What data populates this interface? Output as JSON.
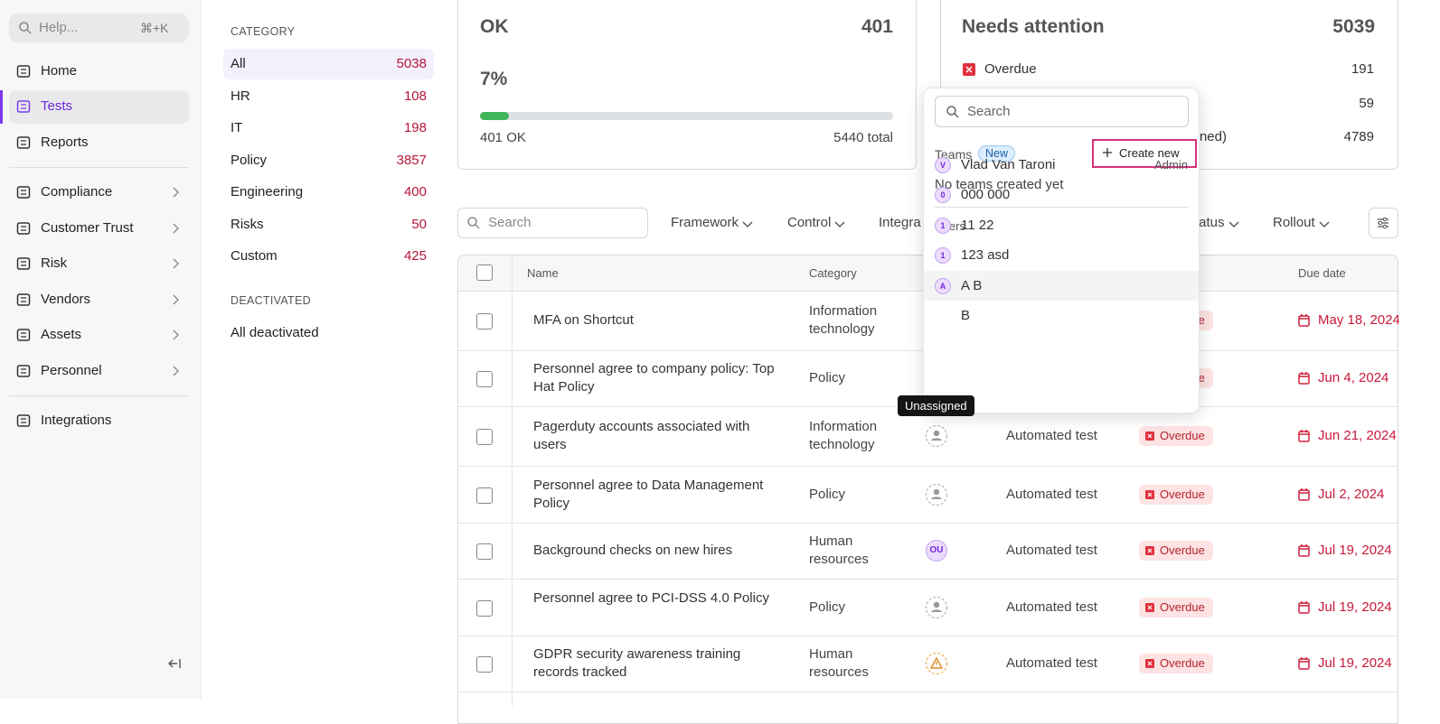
{
  "sidebar": {
    "search": {
      "placeholder": "Help...",
      "shortcut": "⌘+K"
    },
    "nav": [
      {
        "label": "Home"
      },
      {
        "label": "Tests",
        "active": true
      },
      {
        "label": "Reports"
      },
      {
        "label": "Compliance",
        "expandable": true
      },
      {
        "label": "Customer Trust",
        "expandable": true
      },
      {
        "label": "Risk",
        "expandable": true
      },
      {
        "label": "Vendors",
        "expandable": true
      },
      {
        "label": "Assets",
        "expandable": true
      },
      {
        "label": "Personnel",
        "expandable": true
      },
      {
        "label": "Integrations"
      }
    ]
  },
  "categories": {
    "heading": "CATEGORY",
    "items": [
      {
        "label": "All",
        "count": 5038,
        "active": true
      },
      {
        "label": "HR",
        "count": 108
      },
      {
        "label": "IT",
        "count": 198
      },
      {
        "label": "Policy",
        "count": 3857
      },
      {
        "label": "Engineering",
        "count": 400
      },
      {
        "label": "Risks",
        "count": 50
      },
      {
        "label": "Custom",
        "count": 425
      }
    ],
    "deactivated_heading": "DEACTIVATED",
    "deactivated_item": "All deactivated"
  },
  "ok_card": {
    "title": "OK",
    "count": 401,
    "percent_label": "7%",
    "progress": 7,
    "ok_label": "401 OK",
    "total_label": "5440 total"
  },
  "attention_card": {
    "title": "Needs attention",
    "count": 5039,
    "rows": [
      {
        "label": "Overdue",
        "count": 191,
        "icon": "overdue"
      },
      {
        "count": 59
      },
      {
        "label": "ned)",
        "count": 4789
      }
    ]
  },
  "filters": {
    "search_placeholder": "Search",
    "items": [
      "Framework",
      "Control",
      "Integra",
      "tatus",
      "Rollout"
    ]
  },
  "table": {
    "columns": [
      "Name",
      "Category",
      "Due date"
    ],
    "rows": [
      {
        "name": "MFA on Shortcut",
        "category": "Information technology",
        "status": "Overdue",
        "due": "May 18, 2024"
      },
      {
        "name": "Personnel agree to company policy: Top Hat Policy",
        "category": "Policy",
        "status": "Overdue",
        "due": "Jun 4, 2024"
      },
      {
        "name": "Pagerduty accounts associated with users",
        "category": "Information technology",
        "assignee_kind": "unassigned",
        "type": "Automated test",
        "status": "Overdue",
        "due": "Jun 21, 2024"
      },
      {
        "name": "Personnel agree to Data Management Policy",
        "category": "Policy",
        "assignee_kind": "unassigned",
        "type": "Automated test",
        "status": "Overdue",
        "due": "Jul 2, 2024"
      },
      {
        "name": "Background checks on new hires",
        "category": "Human resources",
        "assignee": "OU",
        "type": "Automated test",
        "status": "Overdue",
        "due": "Jul 19, 2024"
      },
      {
        "name": "Personnel agree to PCI-DSS 4.0 Policy",
        "category": "Policy",
        "assignee_kind": "unassigned",
        "type": "Automated test",
        "status": "Overdue",
        "due": "Jul 19, 2024"
      },
      {
        "name": "GDPR security awareness training records tracked",
        "category": "Human resources",
        "assignee_kind": "warning",
        "type": "Automated test",
        "status": "Overdue",
        "due": "Jul 19, 2024"
      }
    ]
  },
  "dropdown": {
    "search_placeholder": "Search",
    "teams_label": "Teams",
    "new_badge": "New",
    "create_button": "Create new",
    "empty_teams": "No teams created yet",
    "users_label": "Users",
    "users": [
      {
        "initial": "V",
        "name": "Vlad Van Taroni",
        "role": "Admin"
      },
      {
        "initial": "0",
        "name": "000 000"
      },
      {
        "initial": "1",
        "name": "11 22"
      },
      {
        "initial": "1",
        "name": "123 asd"
      },
      {
        "initial": "A",
        "name": "A B",
        "highlighted": true
      },
      {
        "name": "B"
      }
    ]
  },
  "tooltip": "Unassigned"
}
